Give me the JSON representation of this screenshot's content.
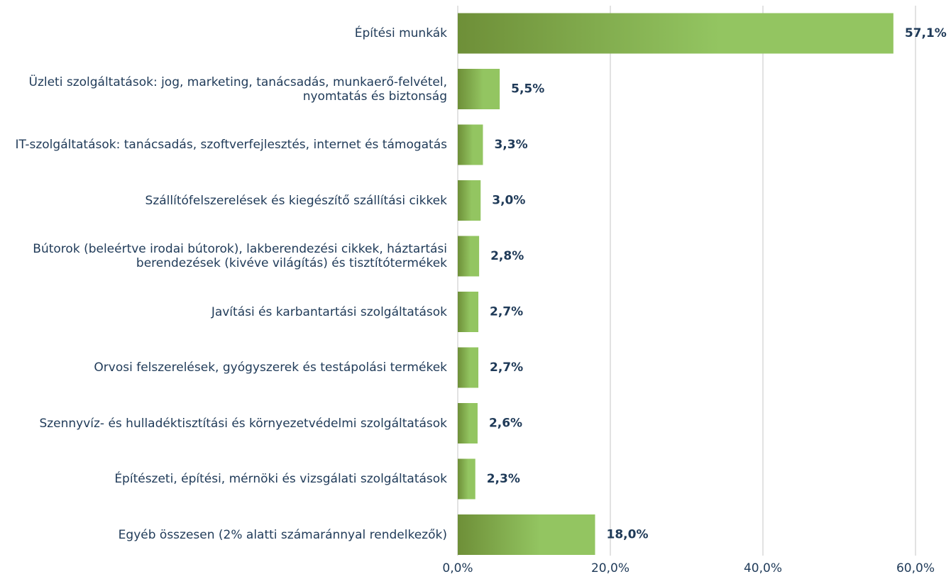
{
  "chart_data": {
    "type": "barh",
    "categories": [
      "Építési munkák",
      "Üzleti szolgáltatások: jog, marketing, tanácsadás, munkaerő-felvétel, nyomtatás és biztonság",
      "IT-szolgáltatások: tanácsadás, szoftverfejlesztés, internet és támogatás",
      "Szállítófelszerelések és kiegészítő szállítási cikkek",
      "Bútorok (beleértve irodai bútorok), lakberendezési cikkek, háztartási berendezések (kivéve világítás) és tisztítótermékek",
      "Javítási és karbantartási szolgáltatások",
      "Orvosi felszerelések, gyógyszerek és testápolási termékek",
      "Szennyvíz- és hulladéktisztítási és környezetvédelmi szolgáltatások",
      "Építészeti, építési, mérnöki és vizsgálati szolgáltatások",
      "Egyéb összesen (2% alatti számaránnyal rendelkezők)"
    ],
    "values": [
      57.1,
      5.5,
      3.3,
      3.0,
      2.8,
      2.7,
      2.7,
      2.6,
      2.3,
      18.0
    ],
    "value_labels": [
      "57,1%",
      "5,5%",
      "3,3%",
      "3,0%",
      "2,8%",
      "2,7%",
      "2,7%",
      "2,6%",
      "2,3%",
      "18,0%"
    ],
    "color": [
      "#6e8f38",
      "#93c561"
    ],
    "xlim": [
      0,
      60
    ],
    "xticks": [
      {
        "value": 0,
        "label": "0,0%"
      },
      {
        "value": 20,
        "label": "20,0%"
      },
      {
        "value": 40,
        "label": "40,0%"
      },
      {
        "value": 60,
        "label": "60,0%"
      }
    ],
    "grid": true
  }
}
